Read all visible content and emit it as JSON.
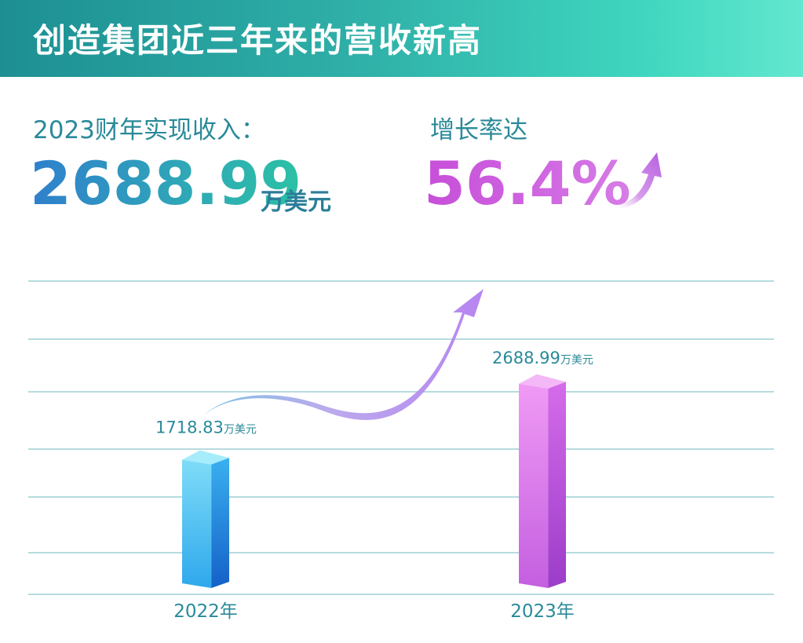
{
  "header": {
    "title": "创造集团近三年来的营收新高"
  },
  "summary": {
    "revenue_label": "2023财年实现收入：",
    "revenue_value": "2688.99",
    "revenue_unit": "万美元",
    "growth_label": "增长率达",
    "growth_value": "56.4%"
  },
  "colors": {
    "banner_start": "#1d8f93",
    "banner_end": "#63e7cf",
    "text_teal": "#2a8a99",
    "bar_2022": "#4fc3f7",
    "bar_2023": "#d77ae6",
    "arrow": "#b78be8",
    "gridline": "#9fcfd3"
  },
  "chart_data": {
    "type": "bar",
    "categories": [
      "2022年",
      "2023年"
    ],
    "values": [
      1718.83,
      2688.99
    ],
    "value_labels": [
      "1718.83",
      "2688.99"
    ],
    "value_unit": "万美元",
    "ylim": [
      0,
      4000
    ],
    "grid": true,
    "title": "",
    "xlabel": "",
    "ylabel": ""
  }
}
